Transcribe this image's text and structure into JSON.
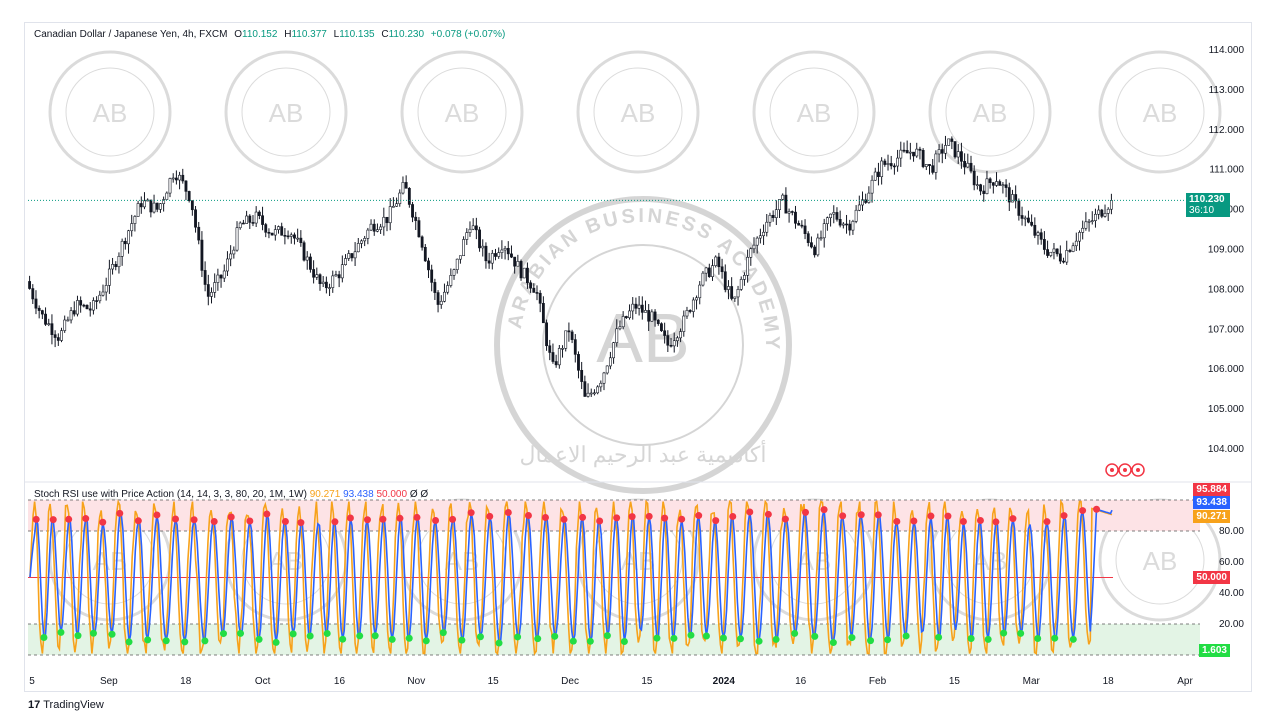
{
  "header": {
    "symbol": "Canadian Dollar / Japanese Yen, 4h, FXCM",
    "o_label": "O",
    "o": "110.152",
    "h_label": "H",
    "h": "110.377",
    "l_label": "L",
    "l": "110.135",
    "c_label": "C",
    "c": "110.230",
    "change": "+0.078 (+0.07%)"
  },
  "price_tag": {
    "price": "110.230",
    "countdown": "36:10"
  },
  "indicator": {
    "title": "Stoch RSI use with Price Action (14, 14, 3, 3, 80, 20, 1M, 1W)",
    "k_value": "90.271",
    "d_value": "93.438",
    "level": "50.000",
    "extra": "Ø Ø",
    "tags": [
      "95.884",
      "93.438",
      "90.271",
      "50.000",
      "1.603"
    ]
  },
  "watermark": {
    "text": "ARABIAN BUSINESS ACADEMY",
    "monogram": "AB",
    "arabic": "أكاديمية عبد الرحيم الاعمال"
  },
  "branding": {
    "logo": "TradingView"
  },
  "colors": {
    "up": "#089981",
    "down": "#f23645",
    "candle": "#131722",
    "k_line": "#f7a21b",
    "d_line": "#2962ff",
    "overbought_fill": "#fde3e6",
    "oversold_fill": "#e3f4e5",
    "dot_red": "#f23645",
    "dot_green": "#22dd44"
  },
  "chart_data": [
    {
      "type": "candlestick",
      "title": "Canadian Dollar / Japanese Yen, 4h, FXCM",
      "y_axis_ticks": [
        "114.000",
        "113.000",
        "112.000",
        "111.000",
        "110.000",
        "109.000",
        "108.000",
        "107.000",
        "106.000",
        "105.000",
        "104.000"
      ],
      "ylim": [
        103.6,
        114.3
      ],
      "x_axis_ticks": [
        "5",
        "Sep",
        "18",
        "Oct",
        "16",
        "Nov",
        "15",
        "Dec",
        "15",
        "2024",
        "16",
        "Feb",
        "15",
        "Mar",
        "18",
        "Apr"
      ],
      "path_points": [
        [
          "Aug 28",
          108.2
        ],
        [
          "Sep 1",
          107.3
        ],
        [
          "Sep 5",
          106.8
        ],
        [
          "Sep 8",
          107.6
        ],
        [
          "Sep 12",
          107.5
        ],
        [
          "Sep 15",
          108.3
        ],
        [
          "Sep 19",
          109.3
        ],
        [
          "Sep 22",
          110.2
        ],
        [
          "Sep 25",
          110.0
        ],
        [
          "Sep 28",
          111.0
        ],
        [
          "Sep 30",
          110.3
        ],
        [
          "Oct 3",
          107.8
        ],
        [
          "Oct 6",
          108.4
        ],
        [
          "Oct 10",
          109.6
        ],
        [
          "Oct 14",
          109.8
        ],
        [
          "Oct 17",
          109.4
        ],
        [
          "Oct 21",
          109.5
        ],
        [
          "Oct 25",
          108.8
        ],
        [
          "Oct 28",
          108.0
        ],
        [
          "Oct 31",
          108.4
        ],
        [
          "Nov 3",
          109.0
        ],
        [
          "Nov 7",
          109.6
        ],
        [
          "Nov 11",
          109.8
        ],
        [
          "Nov 16",
          110.6
        ],
        [
          "Nov 19",
          109.3
        ],
        [
          "Nov 22",
          107.6
        ],
        [
          "Nov 25",
          108.4
        ],
        [
          "Nov 27",
          109.7
        ],
        [
          "Nov 30",
          108.7
        ],
        [
          "Dec 3",
          109.2
        ],
        [
          "Dec 6",
          108.5
        ],
        [
          "Dec 8",
          108.0
        ],
        [
          "Dec 10",
          106.0
        ],
        [
          "Dec 12",
          107.0
        ],
        [
          "Dec 15",
          105.2
        ],
        [
          "Dec 18",
          105.8
        ],
        [
          "Dec 21",
          107.0
        ],
        [
          "Dec 24",
          107.6
        ],
        [
          "Dec 27",
          107.3
        ],
        [
          "Dec 30",
          106.6
        ],
        [
          "Jan 2",
          107.2
        ],
        [
          "Jan 5",
          108.2
        ],
        [
          "Jan 8",
          108.7
        ],
        [
          "Jan 11",
          107.6
        ],
        [
          "Jan 14",
          108.9
        ],
        [
          "Jan 17",
          109.7
        ],
        [
          "Jan 20",
          110.2
        ],
        [
          "Jan 24",
          109.6
        ],
        [
          "Jan 28",
          109.0
        ],
        [
          "Jan 31",
          109.9
        ],
        [
          "Feb 3",
          109.6
        ],
        [
          "Feb 6",
          110.3
        ],
        [
          "Feb 9",
          111.1
        ],
        [
          "Feb 12",
          111.3
        ],
        [
          "Feb 15",
          111.5
        ],
        [
          "Feb 18",
          111.0
        ],
        [
          "Feb 21",
          111.7
        ],
        [
          "Feb 25",
          111.2
        ],
        [
          "Feb 28",
          110.5
        ],
        [
          "Mar 2",
          110.8
        ],
        [
          "Mar 5",
          110.2
        ],
        [
          "Mar 8",
          109.6
        ],
        [
          "Mar 10",
          109.0
        ],
        [
          "Mar 12",
          108.8
        ],
        [
          "Mar 14",
          109.4
        ],
        [
          "Mar 17",
          109.8
        ],
        [
          "Mar 19",
          110.23
        ]
      ],
      "last_close": 110.23
    },
    {
      "type": "line",
      "title": "Stoch RSI use with Price Action (14, 14, 3, 3, 80, 20, 1M, 1W)",
      "y_axis_ticks": [
        "80.000",
        "60.000",
        "40.000",
        "20.000"
      ],
      "ylim": [
        0,
        100
      ],
      "overbought": 80,
      "oversold": 20,
      "midline": 50,
      "peaks_count": 62,
      "series": [
        {
          "name": "90.271",
          "color": "#f7a21b",
          "last": 90.271
        },
        {
          "name": "93.438",
          "color": "#2962ff",
          "last": 93.438
        }
      ]
    }
  ]
}
